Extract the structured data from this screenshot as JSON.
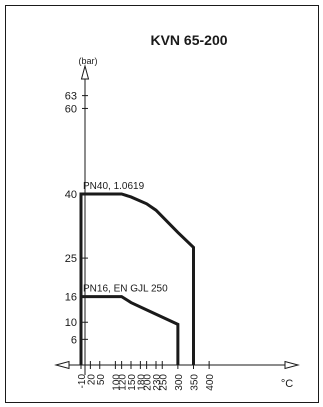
{
  "chart_data": {
    "type": "line",
    "title": "KVN 65-200",
    "ylabel": "(bar)",
    "xlabel": "°C",
    "xlim": [
      -40,
      440
    ],
    "ylim": [
      0,
      68
    ],
    "yticks": [
      6,
      10,
      16,
      25,
      40,
      60,
      63
    ],
    "xticks": [
      -10,
      20,
      50,
      100,
      120,
      150,
      180,
      200,
      230,
      250,
      300,
      350,
      400
    ],
    "series": [
      {
        "name": "PN40, 1.0619",
        "x": [
          -10,
          -10,
          120,
          150,
          200,
          230,
          300,
          350,
          350
        ],
        "y": [
          0,
          40,
          40,
          39.3,
          37.7,
          36.2,
          31,
          27.5,
          0
        ]
      },
      {
        "name": "PN16, EN GJL 250",
        "x": [
          -10,
          120,
          150,
          200,
          300,
          300
        ],
        "y": [
          16,
          16,
          14.6,
          12.9,
          9.5,
          0
        ]
      }
    ],
    "grid": false,
    "legend": "inline"
  }
}
